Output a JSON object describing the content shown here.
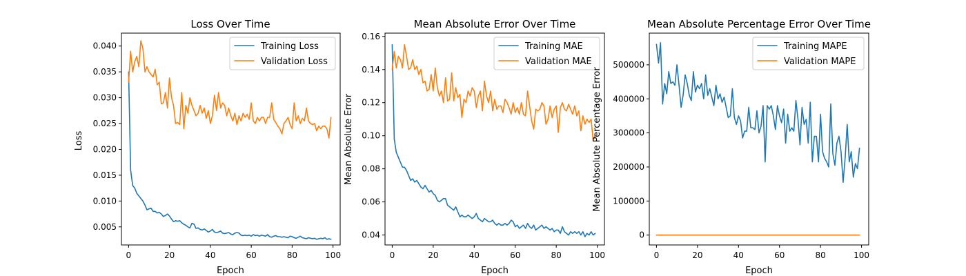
{
  "chart_data": [
    {
      "type": "line",
      "title": "Loss Over Time",
      "xlabel": "Epoch",
      "ylabel": "Loss",
      "xlim": [
        -3.5,
        103.5
      ],
      "ylim": [
        0.0015,
        0.0425
      ],
      "xticks": [
        0,
        20,
        40,
        60,
        80,
        100
      ],
      "yticks": [
        0.005,
        0.01,
        0.015,
        0.02,
        0.025,
        0.03,
        0.035,
        0.04
      ],
      "ytick_labels": [
        "0.005",
        "0.010",
        "0.015",
        "0.020",
        "0.025",
        "0.030",
        "0.035",
        "0.040"
      ],
      "grid": false,
      "legend_position": "top-right",
      "x": [
        0,
        1,
        2,
        3,
        4,
        5,
        6,
        7,
        8,
        9,
        10,
        11,
        12,
        13,
        14,
        15,
        16,
        17,
        18,
        19,
        20,
        21,
        22,
        23,
        24,
        25,
        26,
        27,
        28,
        29,
        30,
        31,
        32,
        33,
        34,
        35,
        36,
        37,
        38,
        39,
        40,
        41,
        42,
        43,
        44,
        45,
        46,
        47,
        48,
        49,
        50,
        51,
        52,
        53,
        54,
        55,
        56,
        57,
        58,
        59,
        60,
        61,
        62,
        63,
        64,
        65,
        66,
        67,
        68,
        69,
        70,
        71,
        72,
        73,
        74,
        75,
        76,
        77,
        78,
        79,
        80,
        81,
        82,
        83,
        84,
        85,
        86,
        87,
        88,
        89,
        90,
        91,
        92,
        93,
        94,
        95,
        96,
        97,
        98,
        99
      ],
      "series": [
        {
          "name": "Training Loss",
          "color": "#1f77b4",
          "values": [
            0.035,
            0.016,
            0.013,
            0.0125,
            0.0115,
            0.011,
            0.0105,
            0.01,
            0.0092,
            0.0083,
            0.0085,
            0.0086,
            0.008,
            0.008,
            0.0077,
            0.0078,
            0.0075,
            0.007,
            0.0072,
            0.0075,
            0.0071,
            0.0065,
            0.006,
            0.0062,
            0.0061,
            0.0062,
            0.0058,
            0.0055,
            0.0053,
            0.005,
            0.0048,
            0.0057,
            0.0055,
            0.0047,
            0.0048,
            0.0045,
            0.0044,
            0.0046,
            0.0043,
            0.004,
            0.0042,
            0.0045,
            0.004,
            0.0039,
            0.004,
            0.0042,
            0.0038,
            0.0037,
            0.0038,
            0.0039,
            0.0036,
            0.0035,
            0.0038,
            0.0039,
            0.0038,
            0.0034,
            0.0033,
            0.0034,
            0.0033,
            0.0034,
            0.0032,
            0.0035,
            0.0033,
            0.0034,
            0.0032,
            0.0034,
            0.0033,
            0.0032,
            0.0035,
            0.0031,
            0.003,
            0.0032,
            0.0033,
            0.0031,
            0.0031,
            0.003,
            0.0031,
            0.003,
            0.0029,
            0.0032,
            0.0031,
            0.0029,
            0.0028,
            0.003,
            0.0032,
            0.0029,
            0.0028,
            0.0027,
            0.0029,
            0.0028,
            0.0027,
            0.0028,
            0.0026,
            0.0027,
            0.0028,
            0.0027,
            0.0029,
            0.0026,
            0.0027,
            0.0026
          ]
        },
        {
          "name": "Validation Loss",
          "color": "#ff7f0e",
          "values": [
            0.033,
            0.039,
            0.035,
            0.037,
            0.038,
            0.036,
            0.041,
            0.0395,
            0.035,
            0.036,
            0.035,
            0.0345,
            0.034,
            0.0355,
            0.0325,
            0.033,
            0.0288,
            0.029,
            0.031,
            0.028,
            0.0338,
            0.03,
            0.0285,
            0.025,
            0.0252,
            0.0248,
            0.031,
            0.024,
            0.0285,
            0.027,
            0.03,
            0.0285,
            0.0275,
            0.0265,
            0.027,
            0.0285,
            0.027,
            0.028,
            0.026,
            0.0275,
            0.025,
            0.0265,
            0.0305,
            0.0275,
            0.031,
            0.028,
            0.029,
            0.0285,
            0.0265,
            0.028,
            0.0265,
            0.0255,
            0.027,
            0.0248,
            0.0265,
            0.0255,
            0.027,
            0.0262,
            0.0268,
            0.0258,
            0.029,
            0.0255,
            0.025,
            0.0262,
            0.0255,
            0.0262,
            0.0262,
            0.025,
            0.0262,
            0.0262,
            0.029,
            0.0258,
            0.0252,
            0.0245,
            0.024,
            0.023,
            0.025,
            0.0255,
            0.0262,
            0.0248,
            0.024,
            0.029,
            0.0255,
            0.0265,
            0.025,
            0.026,
            0.0255,
            0.028,
            0.0255,
            0.025,
            0.0248,
            0.025,
            0.0236,
            0.0245,
            0.024,
            0.0245,
            0.0245,
            0.024,
            0.0222,
            0.0262
          ]
        }
      ]
    },
    {
      "type": "line",
      "title": "Mean Absolute Error Over Time",
      "xlabel": "Epoch",
      "ylabel": "Mean Absolute Error",
      "xlim": [
        -3.5,
        103.5
      ],
      "ylim": [
        0.034,
        0.162
      ],
      "xticks": [
        0,
        20,
        40,
        60,
        80,
        100
      ],
      "yticks": [
        0.04,
        0.06,
        0.08,
        0.1,
        0.12,
        0.14,
        0.16
      ],
      "ytick_labels": [
        "0.04",
        "0.06",
        "0.08",
        "0.10",
        "0.12",
        "0.14",
        "0.16"
      ],
      "grid": false,
      "legend_position": "top-right",
      "x": [
        0,
        1,
        2,
        3,
        4,
        5,
        6,
        7,
        8,
        9,
        10,
        11,
        12,
        13,
        14,
        15,
        16,
        17,
        18,
        19,
        20,
        21,
        22,
        23,
        24,
        25,
        26,
        27,
        28,
        29,
        30,
        31,
        32,
        33,
        34,
        35,
        36,
        37,
        38,
        39,
        40,
        41,
        42,
        43,
        44,
        45,
        46,
        47,
        48,
        49,
        50,
        51,
        52,
        53,
        54,
        55,
        56,
        57,
        58,
        59,
        60,
        61,
        62,
        63,
        64,
        65,
        66,
        67,
        68,
        69,
        70,
        71,
        72,
        73,
        74,
        75,
        76,
        77,
        78,
        79,
        80,
        81,
        82,
        83,
        84,
        85,
        86,
        87,
        88,
        89,
        90,
        91,
        92,
        93,
        94,
        95,
        96,
        97,
        98,
        99
      ],
      "series": [
        {
          "name": "Training MAE",
          "color": "#1f77b4",
          "values": [
            0.155,
            0.098,
            0.09,
            0.087,
            0.084,
            0.081,
            0.081,
            0.079,
            0.076,
            0.073,
            0.074,
            0.072,
            0.073,
            0.071,
            0.069,
            0.068,
            0.07,
            0.068,
            0.066,
            0.067,
            0.065,
            0.064,
            0.061,
            0.06,
            0.061,
            0.062,
            0.062,
            0.058,
            0.057,
            0.056,
            0.055,
            0.057,
            0.054,
            0.051,
            0.052,
            0.051,
            0.051,
            0.052,
            0.051,
            0.05,
            0.051,
            0.053,
            0.05,
            0.049,
            0.048,
            0.05,
            0.049,
            0.048,
            0.048,
            0.049,
            0.047,
            0.046,
            0.047,
            0.046,
            0.046,
            0.047,
            0.046,
            0.047,
            0.049,
            0.048,
            0.045,
            0.046,
            0.044,
            0.045,
            0.046,
            0.044,
            0.047,
            0.045,
            0.044,
            0.046,
            0.043,
            0.044,
            0.045,
            0.046,
            0.044,
            0.045,
            0.044,
            0.043,
            0.044,
            0.042,
            0.043,
            0.043,
            0.041,
            0.045,
            0.042,
            0.041,
            0.04,
            0.042,
            0.041,
            0.042,
            0.041,
            0.042,
            0.04,
            0.042,
            0.039,
            0.041,
            0.04,
            0.042,
            0.04,
            0.041
          ]
        },
        {
          "name": "Validation MAE",
          "color": "#ff7f0e",
          "values": [
            0.14,
            0.151,
            0.141,
            0.148,
            0.146,
            0.141,
            0.155,
            0.148,
            0.14,
            0.141,
            0.146,
            0.14,
            0.142,
            0.137,
            0.14,
            0.132,
            0.133,
            0.127,
            0.128,
            0.137,
            0.127,
            0.141,
            0.129,
            0.124,
            0.127,
            0.12,
            0.135,
            0.121,
            0.122,
            0.138,
            0.121,
            0.129,
            0.123,
            0.125,
            0.111,
            0.122,
            0.12,
            0.127,
            0.124,
            0.129,
            0.127,
            0.117,
            0.124,
            0.127,
            0.115,
            0.133,
            0.124,
            0.12,
            0.127,
            0.115,
            0.122,
            0.116,
            0.118,
            0.118,
            0.114,
            0.122,
            0.12,
            0.117,
            0.113,
            0.12,
            0.114,
            0.117,
            0.113,
            0.12,
            0.113,
            0.112,
            0.127,
            0.118,
            0.109,
            0.104,
            0.116,
            0.115,
            0.116,
            0.12,
            0.118,
            0.107,
            0.11,
            0.118,
            0.111,
            0.116,
            0.118,
            0.102,
            0.117,
            0.12,
            0.116,
            0.115,
            0.119,
            0.116,
            0.113,
            0.118,
            0.112,
            0.115,
            0.103,
            0.112,
            0.107,
            0.11,
            0.108,
            0.11,
            0.097,
            0.101
          ]
        }
      ]
    },
    {
      "type": "line",
      "title": "Mean Absolute Percentage Error Over Time",
      "xlabel": "Epoch",
      "ylabel": "Mean Absolute Percentage Error",
      "xlim": [
        -3.5,
        103.5
      ],
      "ylim": [
        -29000,
        593000
      ],
      "xticks": [
        0,
        20,
        40,
        60,
        80,
        100
      ],
      "yticks": [
        0,
        100000,
        200000,
        300000,
        400000,
        500000
      ],
      "ytick_labels": [
        "0",
        "100000",
        "200000",
        "300000",
        "400000",
        "500000"
      ],
      "grid": false,
      "legend_position": "top-right",
      "x": [
        0,
        1,
        2,
        3,
        4,
        5,
        6,
        7,
        8,
        9,
        10,
        11,
        12,
        13,
        14,
        15,
        16,
        17,
        18,
        19,
        20,
        21,
        22,
        23,
        24,
        25,
        26,
        27,
        28,
        29,
        30,
        31,
        32,
        33,
        34,
        35,
        36,
        37,
        38,
        39,
        40,
        41,
        42,
        43,
        44,
        45,
        46,
        47,
        48,
        49,
        50,
        51,
        52,
        53,
        54,
        55,
        56,
        57,
        58,
        59,
        60,
        61,
        62,
        63,
        64,
        65,
        66,
        67,
        68,
        69,
        70,
        71,
        72,
        73,
        74,
        75,
        76,
        77,
        78,
        79,
        80,
        81,
        82,
        83,
        84,
        85,
        86,
        87,
        88,
        89,
        90,
        91,
        92,
        93,
        94,
        95,
        96,
        97,
        98,
        99
      ],
      "series": [
        {
          "name": "Training MAPE",
          "color": "#1f77b4",
          "values": [
            560000,
            505000,
            565000,
            385000,
            445000,
            415000,
            480000,
            445000,
            450000,
            440000,
            500000,
            440000,
            375000,
            410000,
            470000,
            445000,
            410000,
            395000,
            480000,
            420000,
            440000,
            430000,
            445000,
            400000,
            470000,
            410000,
            430000,
            405000,
            380000,
            440000,
            400000,
            415000,
            390000,
            405000,
            375000,
            345000,
            350000,
            430000,
            345000,
            325000,
            350000,
            335000,
            285000,
            305000,
            305000,
            375000,
            315000,
            315000,
            310000,
            365000,
            300000,
            320000,
            380000,
            215000,
            380000,
            370000,
            380000,
            350000,
            310000,
            380000,
            350000,
            330000,
            370000,
            270000,
            355000,
            305000,
            315000,
            305000,
            395000,
            340000,
            265000,
            375000,
            325000,
            340000,
            270000,
            390000,
            215000,
            290000,
            290000,
            215000,
            355000,
            245000,
            225000,
            215000,
            200000,
            385000,
            240000,
            205000,
            270000,
            290000,
            245000,
            155000,
            225000,
            325000,
            215000,
            245000,
            170000,
            210000,
            195000,
            255000
          ]
        },
        {
          "name": "Validation MAPE",
          "color": "#ff7f0e",
          "values": [
            0,
            0,
            0,
            0,
            0,
            0,
            0,
            0,
            0,
            0,
            0,
            0,
            0,
            0,
            0,
            0,
            0,
            0,
            0,
            0,
            0,
            0,
            0,
            0,
            0,
            0,
            0,
            0,
            0,
            0,
            0,
            0,
            0,
            0,
            0,
            0,
            0,
            0,
            0,
            0,
            0,
            0,
            0,
            0,
            0,
            0,
            0,
            0,
            0,
            0,
            0,
            0,
            0,
            0,
            0,
            0,
            0,
            0,
            0,
            0,
            0,
            0,
            0,
            0,
            0,
            0,
            0,
            0,
            0,
            0,
            0,
            0,
            0,
            0,
            0,
            0,
            0,
            0,
            0,
            0,
            0,
            0,
            0,
            0,
            0,
            0,
            0,
            0,
            0,
            0,
            0,
            0,
            0,
            0,
            0,
            0,
            0,
            0,
            0,
            0
          ]
        }
      ]
    }
  ]
}
